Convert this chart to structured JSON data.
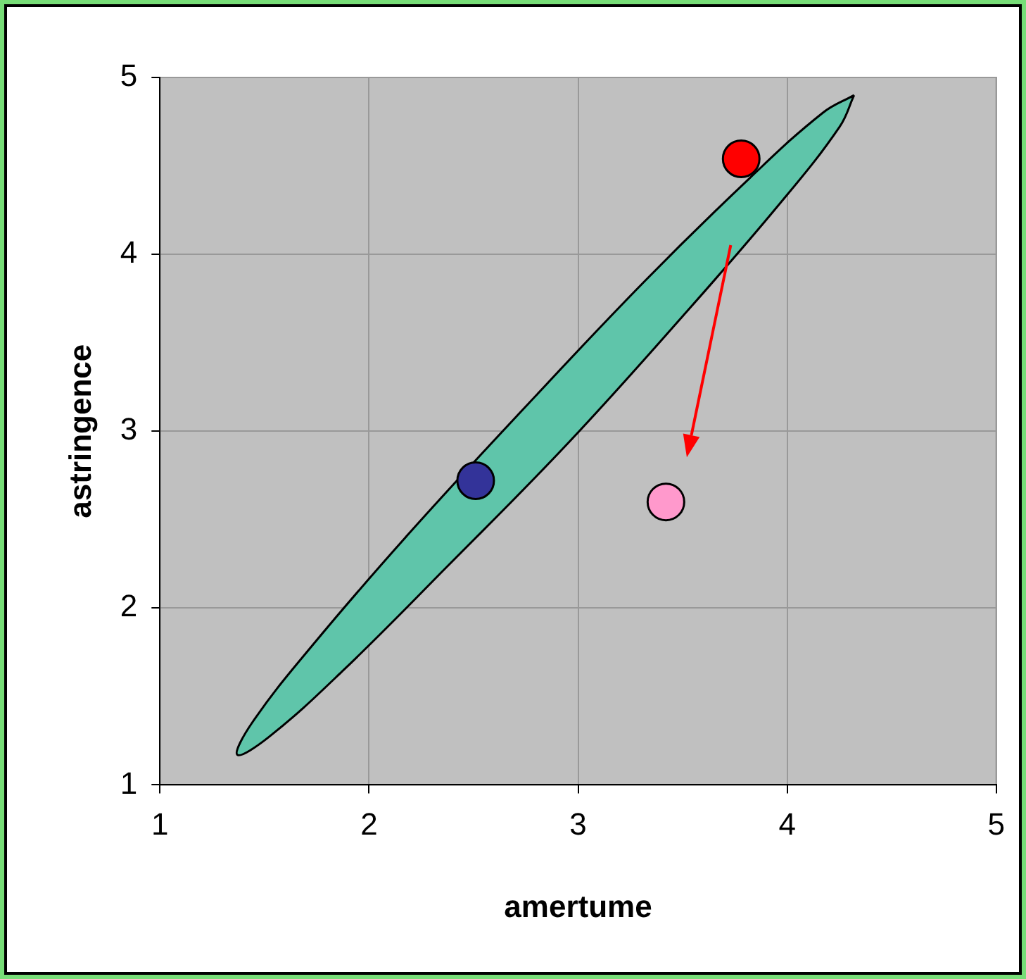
{
  "chart_data": {
    "type": "scatter",
    "xlabel": "amertume",
    "ylabel": "astringence",
    "series": [
      {
        "color": "#ff0000",
        "x": [
          3.78
        ],
        "values": [
          4.54
        ]
      },
      {
        "color": "#333399",
        "x": [
          2.51
        ],
        "values": [
          2.72
        ]
      },
      {
        "color": "#ff99cc",
        "x": [
          3.42
        ],
        "values": [
          2.6
        ]
      },
      {
        "type": "area",
        "marker": "none",
        "color": "#5fc5aa",
        "x": [
          4.32,
          4.25,
          3.96,
          3.5,
          2.95,
          2.37,
          1.87,
          1.52,
          1.37,
          1.44,
          1.73,
          2.19,
          2.75,
          3.32,
          3.82,
          4.17
        ],
        "values": [
          4.9,
          4.72,
          4.28,
          3.65,
          2.93,
          2.23,
          1.64,
          1.27,
          1.17,
          1.35,
          1.79,
          2.42,
          3.14,
          3.85,
          4.43,
          4.8
        ]
      }
    ],
    "xlim": [
      1,
      5
    ],
    "xticks": [
      1,
      2,
      3,
      4,
      5
    ],
    "ylim": [
      1,
      5
    ],
    "yticks": [
      1,
      2,
      3,
      4,
      5
    ],
    "grid": true,
    "marker": "circle"
  }
}
